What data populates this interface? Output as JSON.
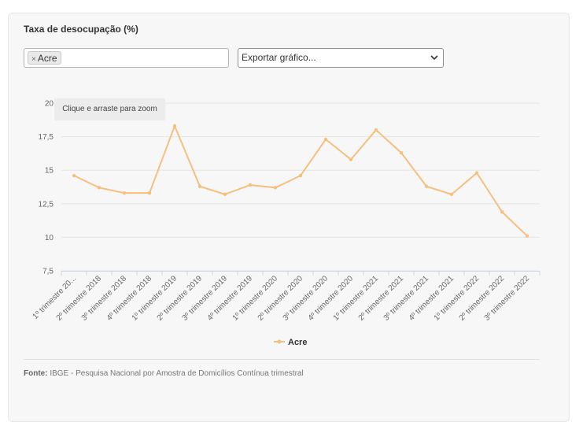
{
  "title": "Taxa de desocupação (%)",
  "filter": {
    "tag_remove": "×",
    "tag_label": "Acre"
  },
  "export": {
    "label": "Exportar gráfico..."
  },
  "tooltip": "Clique e arraste para zoom",
  "source": {
    "prefix": "Fonte:",
    "text": "IBGE - Pesquisa Nacional por Amostra de Domicílios Contínua trimestral"
  },
  "colors": {
    "series": "#f5c07f",
    "grid": "#e6e6e6",
    "axis": "#ccd6eb"
  },
  "chart_data": {
    "type": "line",
    "categories": [
      "1º trimestre 20...",
      "2º trimestre 2018",
      "3º trimestre 2018",
      "4º trimestre 2018",
      "1º trimestre 2019",
      "2º trimestre 2019",
      "3º trimestre 2019",
      "4º trimestre 2019",
      "1º trimestre 2020",
      "2º trimestre 2020",
      "3º trimestre 2020",
      "4º trimestre 2020",
      "1º trimestre 2021",
      "2º trimestre 2021",
      "3º trimestre 2021",
      "4º trimestre 2021",
      "1º trimestre 2022",
      "2º trimestre 2022",
      "3º trimestre 2022"
    ],
    "series": [
      {
        "name": "Acre",
        "values": [
          14.6,
          13.7,
          13.3,
          13.3,
          18.3,
          13.8,
          13.2,
          13.9,
          13.7,
          14.6,
          17.3,
          15.8,
          18.0,
          16.3,
          13.8,
          13.2,
          14.8,
          11.9,
          10.1
        ]
      }
    ],
    "yticks": [
      "7,5",
      "10",
      "12,5",
      "15",
      "17,5",
      "20"
    ],
    "ylim": [
      7.5,
      20
    ],
    "grid": true,
    "legend": "bottom-center"
  }
}
